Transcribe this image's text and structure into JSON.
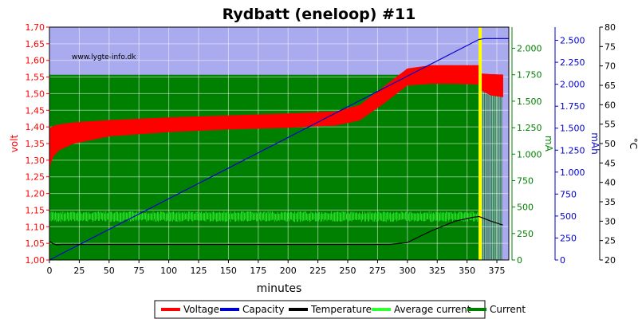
{
  "chart_data": {
    "type": "line",
    "title": "Rydbatt (eneloop) #11",
    "watermark": "www.lygte-info.dk",
    "xlabel": "minutes",
    "xlim": [
      0,
      385
    ],
    "x_ticks": [
      "0",
      "25",
      "50",
      "75",
      "100",
      "125",
      "150",
      "175",
      "200",
      "225",
      "250",
      "275",
      "300",
      "325",
      "350",
      "375"
    ],
    "axes": {
      "volt": {
        "label": "volt",
        "color": "#ff0000",
        "lim": [
          1.0,
          1.7
        ],
        "ticks": [
          "1,00",
          "1,05",
          "1,10",
          "1,15",
          "1,20",
          "1,25",
          "1,30",
          "1,35",
          "1,40",
          "1,45",
          "1,50",
          "1,55",
          "1,60",
          "1,65",
          "1,70"
        ]
      },
      "ma": {
        "label": "mA",
        "color": "#008000",
        "lim": [
          0,
          2200
        ],
        "ticks": [
          "0",
          "250",
          "500",
          "750",
          "1.000",
          "1.250",
          "1.500",
          "1.750",
          "2.000"
        ]
      },
      "mah": {
        "label": "mAh",
        "color": "#0000cc",
        "lim": [
          0,
          2650
        ],
        "ticks": [
          "0",
          "250",
          "500",
          "750",
          "1.000",
          "1.250",
          "1.500",
          "1.750",
          "2.000",
          "2.250",
          "2.500"
        ]
      },
      "temp": {
        "label": "°C",
        "color": "#000000",
        "lim": [
          20,
          80
        ],
        "ticks": [
          "20",
          "25",
          "30",
          "35",
          "40",
          "45",
          "50",
          "55",
          "60",
          "65",
          "70",
          "75",
          "80"
        ]
      }
    },
    "series": [
      {
        "name": "Voltage",
        "color": "#ff0000",
        "axis": "volt",
        "x": [
          0,
          1,
          3,
          8,
          20,
          50,
          100,
          150,
          200,
          240,
          260,
          280,
          300,
          320,
          340,
          360,
          362,
          370,
          380
        ],
        "upper": [
          1.395,
          1.398,
          1.402,
          1.407,
          1.413,
          1.42,
          1.428,
          1.434,
          1.44,
          1.446,
          1.465,
          1.52,
          1.575,
          1.585,
          1.585,
          1.585,
          1.56,
          1.558,
          1.557
        ],
        "lower": [
          1.27,
          1.29,
          1.31,
          1.33,
          1.35,
          1.372,
          1.385,
          1.393,
          1.398,
          1.405,
          1.42,
          1.47,
          1.525,
          1.53,
          1.53,
          1.528,
          1.51,
          1.495,
          1.49
        ]
      },
      {
        "name": "Capacity",
        "color": "#0000cc",
        "axis": "mah",
        "x": [
          0,
          360,
          365,
          385
        ],
        "values": [
          0,
          2510,
          2520,
          2520
        ]
      },
      {
        "name": "Temperature",
        "color": "#000000",
        "axis": "temp",
        "x": [
          0,
          3,
          6,
          10,
          50,
          100,
          150,
          200,
          250,
          285,
          300,
          320,
          340,
          355,
          360,
          370,
          380
        ],
        "values": [
          24.8,
          24.2,
          23.9,
          24.0,
          24.0,
          24.0,
          24.0,
          24.0,
          24.0,
          24.0,
          24.5,
          27.5,
          30.0,
          31.0,
          31.2,
          30.0,
          29.0
        ]
      },
      {
        "name": "Average current",
        "color": "#33ff33",
        "axis": "ma",
        "x": [
          0,
          360
        ],
        "upper": [
          460,
          460
        ],
        "lower": [
          360,
          360
        ]
      },
      {
        "name": "Current",
        "color": "#008000",
        "axis": "ma",
        "x": [
          0,
          360,
          361,
          380
        ],
        "values": [
          1750,
          1750,
          0,
          0
        ]
      }
    ],
    "legend": {
      "placement": "bottom-center",
      "entries": [
        {
          "label": "Voltage",
          "color": "#ff0000"
        },
        {
          "label": "Capacity",
          "color": "#0000cc"
        },
        {
          "label": "Temperature",
          "color": "#000000"
        },
        {
          "label": "Average current",
          "color": "#33ff33"
        },
        {
          "label": "Current",
          "color": "#008000"
        }
      ]
    },
    "annotations": [
      {
        "type": "vertical-marker",
        "x": 361,
        "color": "#ffff00"
      }
    ],
    "grid": true,
    "background_color": "#aaaaee"
  }
}
